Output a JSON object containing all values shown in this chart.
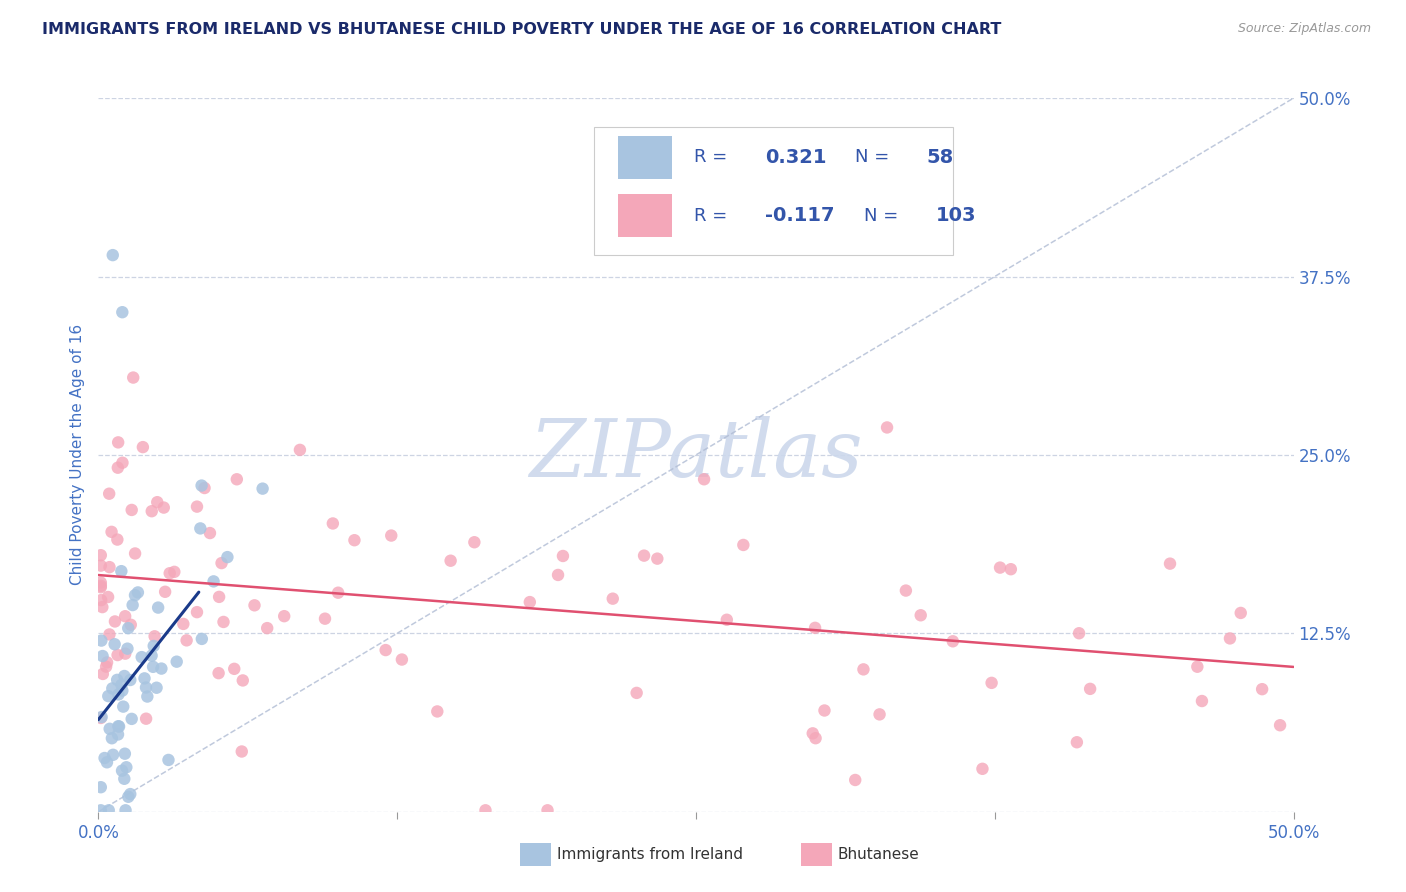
{
  "title": "IMMIGRANTS FROM IRELAND VS BHUTANESE CHILD POVERTY UNDER THE AGE OF 16 CORRELATION CHART",
  "source": "Source: ZipAtlas.com",
  "ylabel": "Child Poverty Under the Age of 16",
  "xlim": [
    0,
    0.5
  ],
  "ylim": [
    0,
    0.5
  ],
  "ireland_color": "#a8c4e0",
  "bhutanese_color": "#f4a7b9",
  "ireland_line_color": "#1a3a8a",
  "bhutanese_line_color": "#e05070",
  "diag_line_color": "#b0bcd4",
  "ireland_R": "0.321",
  "ireland_N": "58",
  "bhutanese_R": "-0.117",
  "bhutanese_N": "103",
  "legend_text_color": "#3355aa",
  "title_color": "#1a2a6a",
  "axis_label_color": "#4472c4",
  "tick_label_color": "#4472c4",
  "grid_color": "#c8d0e0",
  "watermark_color": "#ccd8ec",
  "background_color": "#ffffff"
}
